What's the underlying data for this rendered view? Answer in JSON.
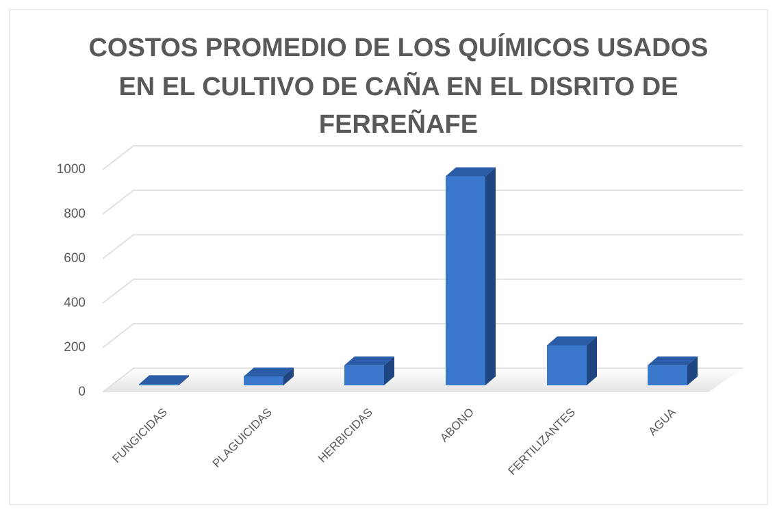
{
  "chart_data": {
    "type": "bar3d",
    "title": [
      "COSTOS PROMEDIO DE LOS QUÍMICOS USADOS",
      "EN EL CULTIVO DE CAÑA EN EL DISRITO DE",
      "FERREÑAFE"
    ],
    "categories": [
      "FUNGICIDAS",
      "PLAGUICIDAS",
      "HERBICIDAS",
      "ABONO",
      "FERTILIZANTES",
      "AGUA"
    ],
    "values": [
      5,
      40,
      90,
      940,
      180,
      90
    ],
    "color": "#3a78cc",
    "ylim": [
      0,
      1000
    ],
    "yticks": [
      0,
      200,
      400,
      600,
      800,
      1000
    ],
    "grid": true
  }
}
